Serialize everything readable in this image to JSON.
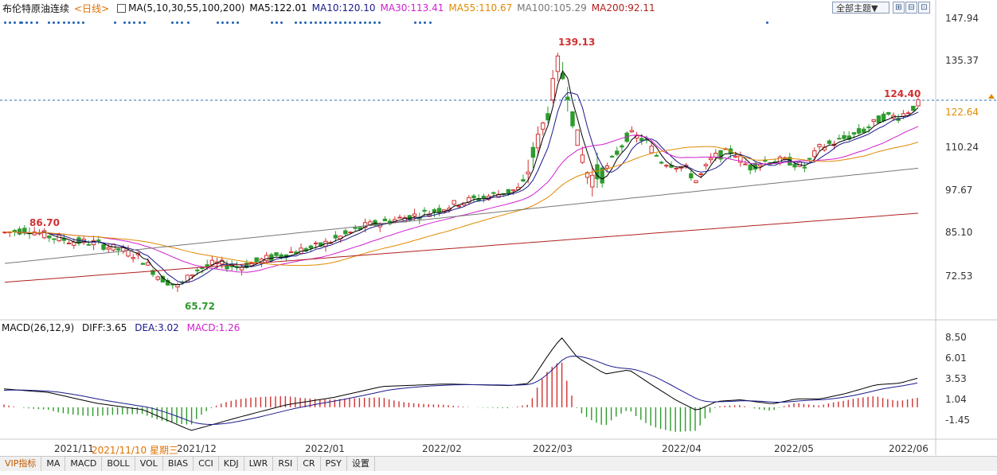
{
  "header": {
    "instrument": "布伦特原油连续",
    "period": "<日线>",
    "ma_label": "MA(5,10,30,55,100,200)",
    "ma5": "MA5:122.01",
    "ma10": "MA10:120.10",
    "ma30": "MA30:113.41",
    "ma55": "MA55:110.67",
    "ma100": "MA100:105.29",
    "ma200": "MA200:92.11",
    "theme_button": "全部主题▼",
    "colors": {
      "ma5": "#000000",
      "ma10": "#1a1a8c",
      "ma30": "#d020d0",
      "ma55": "#e08a00",
      "ma100": "#777777",
      "ma200": "#b02020",
      "up": "#d23030",
      "down": "#2e9a2e"
    }
  },
  "price_axis": {
    "ticks": [
      "147.94",
      "135.37",
      "122.64",
      "110.24",
      "97.67",
      "85.10",
      "72.53"
    ],
    "last_close_label": "122.64"
  },
  "annotations": {
    "high_label": "139.13",
    "low_label": "65.72",
    "left_high_label": "86.70",
    "current_high_label": "124.40"
  },
  "macd": {
    "label": "MACD(26,12,9)",
    "diff": "DIFF:3.65",
    "dea": "DEA:3.02",
    "macd": "MACD:1.26",
    "ticks": [
      "8.50",
      "6.01",
      "3.53",
      "1.04",
      "-1.45"
    ]
  },
  "x_axis": {
    "labels": [
      "2021/11",
      "2021/12",
      "2022/01",
      "2022/02",
      "2022/03",
      "2022/04",
      "2022/05",
      "2022/06"
    ],
    "cursor_date": "2021/11/10 星期三"
  },
  "tabs": [
    "VIP指标",
    "MA",
    "MACD",
    "BOLL",
    "VOL",
    "BIAS",
    "CCI",
    "KDJ",
    "LWR",
    "RSI",
    "CR",
    "PSY",
    "设置"
  ],
  "chart_data": [
    {
      "type": "candlestick",
      "title": "布伦特原油连续 <日线>",
      "ylim": [
        60,
        150
      ],
      "grid": false,
      "series": [
        {
          "name": "MA5",
          "values": [
            122.01
          ]
        },
        {
          "name": "MA10",
          "values": [
            120.1
          ]
        },
        {
          "name": "MA30",
          "values": [
            113.41
          ]
        },
        {
          "name": "MA55",
          "values": [
            110.67
          ]
        },
        {
          "name": "MA100",
          "values": [
            105.29
          ]
        },
        {
          "name": "MA200",
          "values": [
            92.11
          ]
        }
      ],
      "points": [
        {
          "x": "2021/11",
          "y": 84.5
        },
        {
          "x": "2021/11",
          "y": 86.7
        },
        {
          "x": "2021/11",
          "y": 81.0
        },
        {
          "x": "2021/12",
          "y": 69.0
        },
        {
          "x": "2021/12",
          "y": 65.72
        },
        {
          "x": "2021/12",
          "y": 76.0
        },
        {
          "x": "2022/01",
          "y": 79.0
        },
        {
          "x": "2022/01",
          "y": 87.0
        },
        {
          "x": "2022/02",
          "y": 93.0
        },
        {
          "x": "2022/02",
          "y": 97.0
        },
        {
          "x": "2022/03",
          "y": 110.0
        },
        {
          "x": "2022/03",
          "y": 139.13
        },
        {
          "x": "2022/03",
          "y": 100.0
        },
        {
          "x": "2022/03",
          "y": 116.0
        },
        {
          "x": "2022/04",
          "y": 100.0
        },
        {
          "x": "2022/04",
          "y": 107.0
        },
        {
          "x": "2022/05",
          "y": 105.0
        },
        {
          "x": "2022/05",
          "y": 110.0
        },
        {
          "x": "2022/06",
          "y": 120.0
        },
        {
          "x": "2022/06",
          "y": 124.4
        },
        {
          "x": "2022/06",
          "y": 122.64
        }
      ]
    },
    {
      "type": "bar",
      "title": "MACD(26,12,9)",
      "ylim": [
        -3,
        9
      ],
      "series": [
        {
          "name": "DIFF",
          "values": [
            3.65
          ]
        },
        {
          "name": "DEA",
          "values": [
            3.02
          ]
        },
        {
          "name": "MACD",
          "values": [
            1.26
          ]
        }
      ]
    }
  ]
}
